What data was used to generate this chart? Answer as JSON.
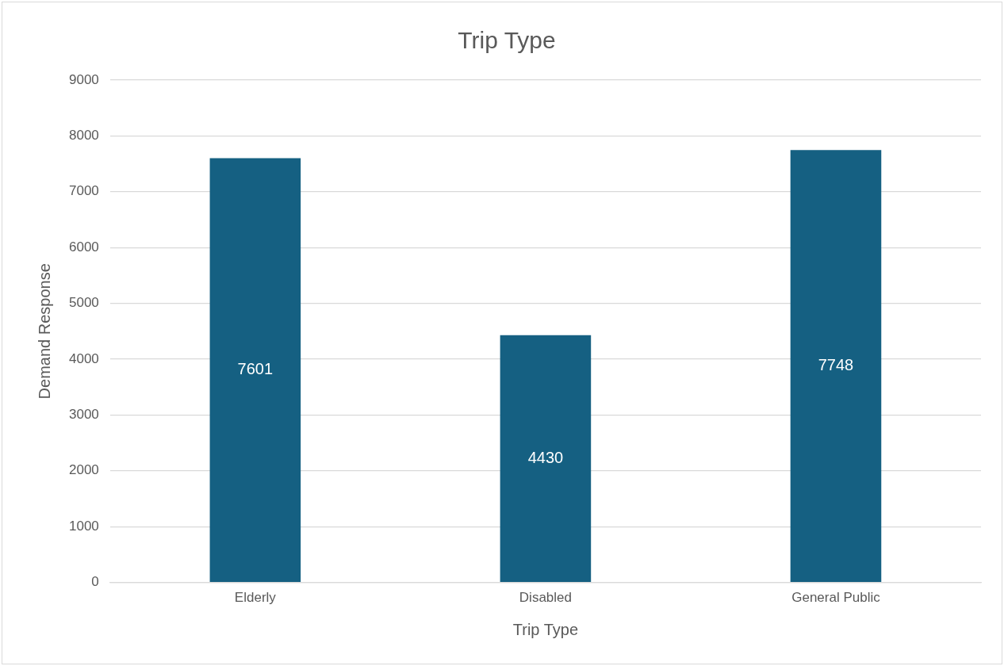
{
  "chart_data": {
    "type": "bar",
    "title": "Trip Type",
    "xlabel": "Trip Type",
    "ylabel": "Demand Response",
    "categories": [
      "Elderly",
      "Disabled",
      "General Public"
    ],
    "values": [
      7601,
      4430,
      7748
    ],
    "color": "#156082",
    "ylim": [
      0,
      9000
    ],
    "yticks": [
      0,
      1000,
      2000,
      3000,
      4000,
      5000,
      6000,
      7000,
      8000,
      9000
    ],
    "grid": "y",
    "data_labels": true
  }
}
